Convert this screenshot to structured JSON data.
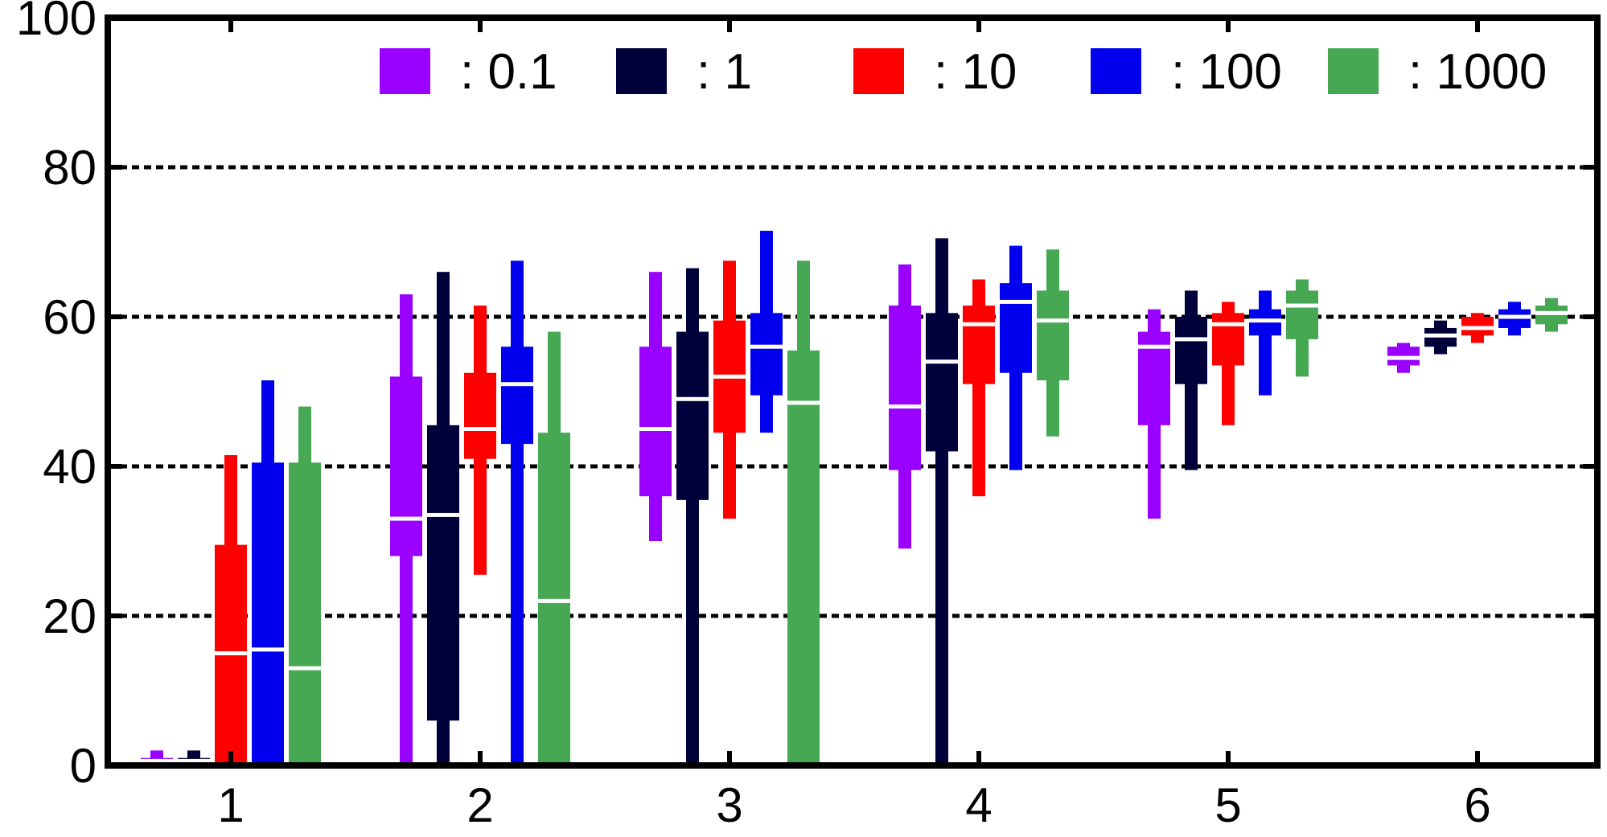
{
  "chart_data": {
    "type": "boxplot",
    "title": "",
    "xlabel": "",
    "ylabel": "",
    "ylim": [
      0,
      100
    ],
    "yticks": [
      0,
      20,
      40,
      60,
      80,
      100
    ],
    "grid": "horizontal-dashed",
    "legend_position": "top",
    "categories": [
      "1",
      "2",
      "3",
      "4",
      "5",
      "6"
    ],
    "series": [
      {
        "name": ": 0.1",
        "color": "#9900ff",
        "boxes": [
          {
            "min": 0,
            "q1": 0.2,
            "median": 0.6,
            "q3": 1.0,
            "max": 2.0
          },
          {
            "min": 0,
            "q1": 28,
            "median": 33,
            "q3": 52,
            "max": 63
          },
          {
            "min": 30,
            "q1": 36,
            "median": 45,
            "q3": 56,
            "max": 66
          },
          {
            "min": 29,
            "q1": 39.5,
            "median": 48,
            "q3": 61.5,
            "max": 67
          },
          {
            "min": 33,
            "q1": 45.5,
            "median": 56,
            "q3": 58,
            "max": 61
          },
          {
            "min": 52.5,
            "q1": 53.5,
            "median": 54.5,
            "q3": 56,
            "max": 56.5
          }
        ]
      },
      {
        "name": ": 1",
        "color": "#00003a",
        "boxes": [
          {
            "min": 0,
            "q1": 0.2,
            "median": 0.6,
            "q3": 1.0,
            "max": 2.0
          },
          {
            "min": 0,
            "q1": 6,
            "median": 33.5,
            "q3": 45.5,
            "max": 66
          },
          {
            "min": 0,
            "q1": 35.5,
            "median": 49,
            "q3": 58,
            "max": 66.5
          },
          {
            "min": 0,
            "q1": 42,
            "median": 54,
            "q3": 60.5,
            "max": 70.5
          },
          {
            "min": 39.5,
            "q1": 51,
            "median": 57,
            "q3": 60,
            "max": 63.5
          },
          {
            "min": 55,
            "q1": 56,
            "median": 57.5,
            "q3": 58.5,
            "max": 59.5
          }
        ]
      },
      {
        "name": ": 10",
        "color": "#ff0000",
        "boxes": [
          {
            "min": 0,
            "q1": 0,
            "median": 15,
            "q3": 29.5,
            "max": 41.5
          },
          {
            "min": 25.5,
            "q1": 41,
            "median": 45,
            "q3": 52.5,
            "max": 61.5
          },
          {
            "min": 33,
            "q1": 44.5,
            "median": 52,
            "q3": 59.5,
            "max": 67.5
          },
          {
            "min": 36,
            "q1": 51,
            "median": 59,
            "q3": 61.5,
            "max": 65
          },
          {
            "min": 45.5,
            "q1": 53.5,
            "median": 59,
            "q3": 60.5,
            "max": 62
          },
          {
            "min": 56.5,
            "q1": 57.5,
            "median": 58.5,
            "q3": 60,
            "max": 60.5
          }
        ]
      },
      {
        "name": ": 100",
        "color": "#0000ee",
        "boxes": [
          {
            "min": 0,
            "q1": 0,
            "median": 15.5,
            "q3": 40.5,
            "max": 51.5
          },
          {
            "min": 0,
            "q1": 43,
            "median": 51,
            "q3": 56,
            "max": 67.5
          },
          {
            "min": 44.5,
            "q1": 49.5,
            "median": 56,
            "q3": 60.5,
            "max": 71.5
          },
          {
            "min": 39.5,
            "q1": 52.5,
            "median": 62,
            "q3": 64.5,
            "max": 69.5
          },
          {
            "min": 49.5,
            "q1": 57.5,
            "median": 59.5,
            "q3": 61,
            "max": 63.5
          },
          {
            "min": 57.5,
            "q1": 58.5,
            "median": 60,
            "q3": 61,
            "max": 62
          }
        ]
      },
      {
        "name": ": 1000",
        "color": "#46a853",
        "boxes": [
          {
            "min": 0,
            "q1": 0,
            "median": 13,
            "q3": 40.5,
            "max": 48
          },
          {
            "min": 0,
            "q1": 0,
            "median": 22,
            "q3": 44.5,
            "max": 58
          },
          {
            "min": 0,
            "q1": 0,
            "median": 48.5,
            "q3": 55.5,
            "max": 67.5
          },
          {
            "min": 44,
            "q1": 51.5,
            "median": 59.5,
            "q3": 63.5,
            "max": 69
          },
          {
            "min": 52,
            "q1": 57,
            "median": 61.5,
            "q3": 63.5,
            "max": 65
          },
          {
            "min": 58,
            "q1": 59,
            "median": 60.5,
            "q3": 61.5,
            "max": 62.5
          }
        ]
      }
    ]
  }
}
